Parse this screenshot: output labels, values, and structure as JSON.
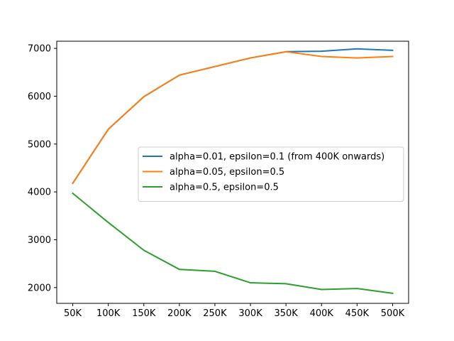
{
  "chart_data": {
    "type": "line",
    "title": "",
    "xlabel": "",
    "ylabel": "",
    "categories": [
      "50K",
      "100K",
      "150K",
      "200K",
      "250K",
      "300K",
      "350K",
      "400K",
      "450K",
      "500K"
    ],
    "x": [
      50000,
      100000,
      150000,
      200000,
      250000,
      300000,
      350000,
      400000,
      450000,
      500000
    ],
    "xlim": [
      27500,
      522500
    ],
    "ylim": [
      1670,
      7150
    ],
    "yticks": [
      2000,
      3000,
      4000,
      5000,
      6000,
      7000
    ],
    "ytick_labels": [
      "2000",
      "3000",
      "4000",
      "5000",
      "6000",
      "7000"
    ],
    "grid": false,
    "legend_position": "center-right",
    "series": [
      {
        "name": "alpha=0.01, epsilon=0.1 (from 400K onwards)",
        "color": "#1f77b4",
        "values": [
          4180,
          5310,
          5990,
          6440,
          6620,
          6800,
          6930,
          6940,
          6990,
          6960
        ]
      },
      {
        "name": "alpha=0.05, epsilon=0.5",
        "color": "#ff7f0e",
        "values": [
          4180,
          5310,
          5990,
          6440,
          6620,
          6800,
          6930,
          6830,
          6800,
          6830
        ]
      },
      {
        "name": "alpha=0.5, epsilon=0.5",
        "color": "#2ca02c",
        "values": [
          3970,
          3360,
          2780,
          2380,
          2340,
          2100,
          2080,
          1960,
          1980,
          1880
        ]
      }
    ]
  }
}
